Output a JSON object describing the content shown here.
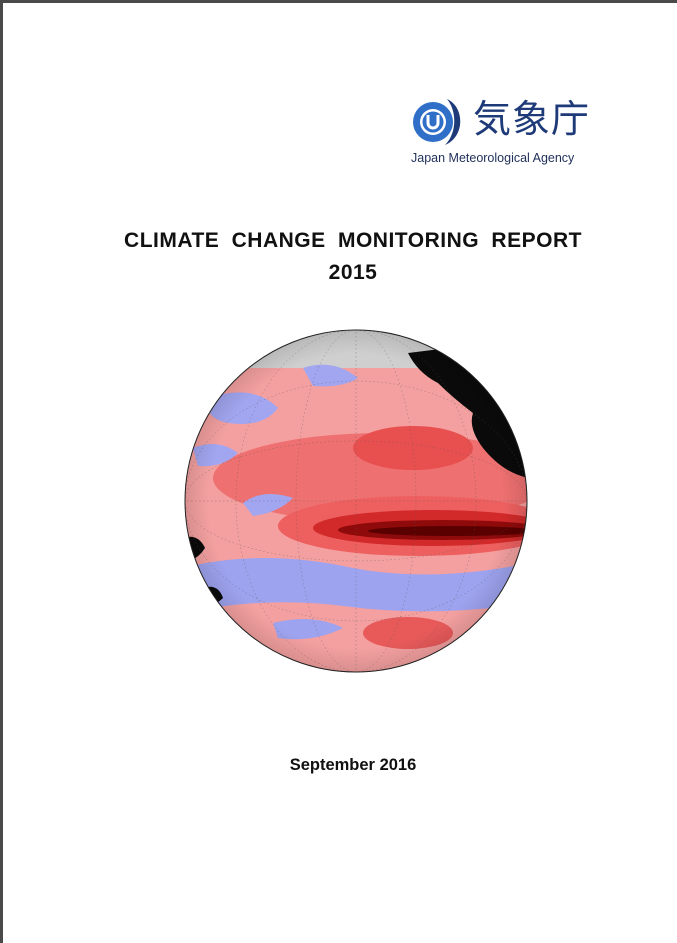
{
  "agency": {
    "name_jp": "気象庁",
    "name_en": "Japan Meteorological Agency",
    "brand_color": "#1f3a78",
    "accent_color": "#2f6fc7"
  },
  "report": {
    "title": "CLIMATE CHANGE MONITORING REPORT",
    "year": "2015",
    "date": "September 2016"
  },
  "cover_image": {
    "icon": "sst-anomaly-globe",
    "colors": {
      "warm_strong": "#6a0000",
      "warm": "#e84c4c",
      "warm_light": "#f7a6a6",
      "cool": "#9fa4f2",
      "land": "#0a0a0a",
      "sea_ice": "#cfcfcf"
    }
  }
}
